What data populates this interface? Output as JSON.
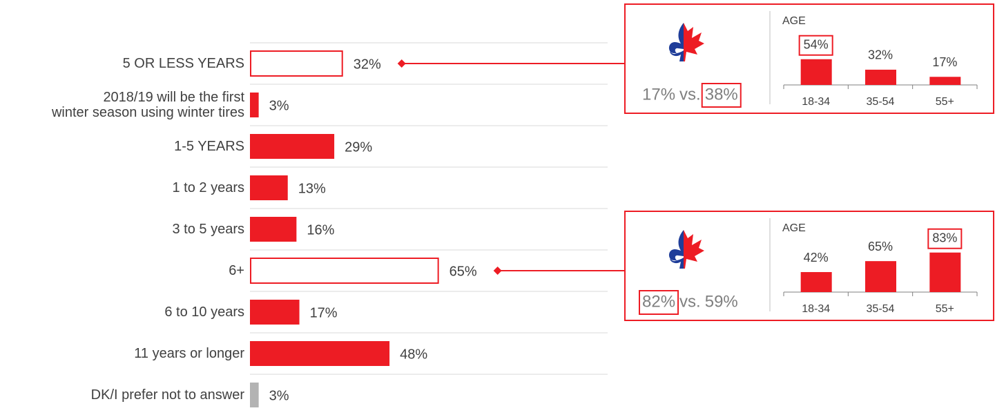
{
  "chart_data": [
    {
      "type": "hbar",
      "categories": [
        "5 OR LESS YEARS",
        "2018/19 will be the first\nwinter season using winter tires",
        "1-5 YEARS",
        "1 to 2 years",
        "3 to 5 years",
        "6+",
        "6 to 10 years",
        "11 years or longer",
        "DK/I prefer not to answer"
      ],
      "values": [
        32,
        3,
        29,
        13,
        16,
        65,
        17,
        48,
        3
      ],
      "value_labels": [
        "32%",
        "3%",
        "29%",
        "13%",
        "16%",
        "65%",
        "17%",
        "48%",
        "3%"
      ],
      "colors": [
        "#ed1c24",
        "#ed1c24",
        "#ed1c24",
        "#ed1c24",
        "#ed1c24",
        "#ed1c24",
        "#ed1c24",
        "#ed1c24",
        "#b3b3b3"
      ],
      "outlined": [
        true,
        false,
        false,
        false,
        false,
        true,
        false,
        false,
        false
      ],
      "xlim": [
        0,
        100
      ]
    },
    {
      "type": "inset-bar",
      "title": "AGE",
      "link": 0,
      "comparison": {
        "values": [
          17,
          38
        ],
        "labels": [
          "17%",
          "38%"
        ],
        "separator": "vs.",
        "highlight": 1
      },
      "categories": [
        "18-34",
        "35-54",
        "55+"
      ],
      "values": [
        54,
        32,
        17
      ],
      "value_labels": [
        "54%",
        "32%",
        "17%"
      ],
      "highlight": 0,
      "color": "#ed1c24",
      "ylim": [
        0,
        100
      ]
    },
    {
      "type": "inset-bar",
      "title": "AGE",
      "link": 5,
      "comparison": {
        "values": [
          82,
          59
        ],
        "labels": [
          "82%",
          "59%"
        ],
        "separator": "vs.",
        "highlight": 0
      },
      "categories": [
        "18-34",
        "35-54",
        "55+"
      ],
      "values": [
        42,
        65,
        83
      ],
      "value_labels": [
        "42%",
        "65%",
        "83%"
      ],
      "highlight": 2,
      "color": "#ed1c24",
      "ylim": [
        0,
        100
      ]
    }
  ]
}
